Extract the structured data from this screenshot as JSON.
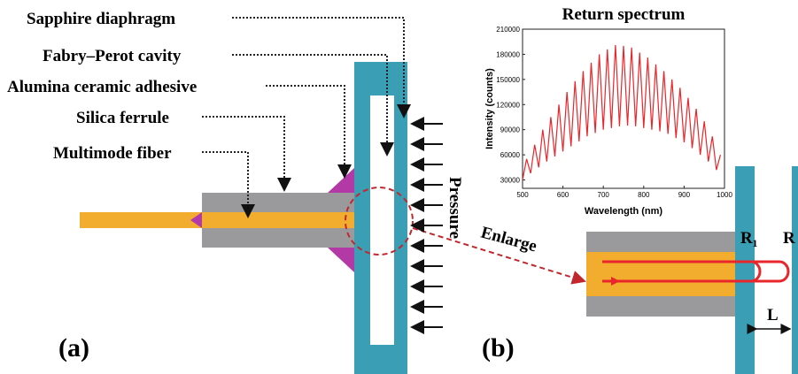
{
  "labels": {
    "sapphire": "Sapphire diaphragm",
    "cavity": "Fabry–Perot cavity",
    "adhesive": "Alumina ceramic adhesive",
    "ferrule": "Silica ferrule",
    "fiber": "Multimode fiber",
    "pressure": "Pressure",
    "enlarge": "Enlarge",
    "r1": "R₁",
    "r2": "R",
    "l": "L",
    "a": "(a)",
    "b": "(b)"
  },
  "chart_data": {
    "type": "line",
    "title": "Return spectrum",
    "x_label": "Wavelength (nm)",
    "y_label": "Intensity (counts)",
    "x": [
      500,
      510,
      520,
      530,
      540,
      550,
      560,
      570,
      580,
      590,
      600,
      610,
      620,
      630,
      640,
      650,
      660,
      670,
      680,
      690,
      700,
      710,
      720,
      730,
      740,
      750,
      760,
      770,
      780,
      790,
      800,
      810,
      820,
      830,
      840,
      850,
      860,
      870,
      880,
      890,
      900,
      910,
      920,
      930,
      940,
      950,
      960,
      970,
      980,
      990
    ],
    "series": [
      {
        "color": "#e8262b",
        "values": [
          30000,
          55000,
          38000,
          72000,
          45000,
          90000,
          52000,
          105000,
          58000,
          120000,
          64000,
          135000,
          70000,
          148000,
          76000,
          160000,
          82000,
          170000,
          86000,
          180000,
          90000,
          186000,
          92000,
          191000,
          94000,
          190000,
          95000,
          188000,
          94000,
          182000,
          92000,
          176000,
          90000,
          168000,
          88000,
          160000,
          85000,
          150000,
          80000,
          140000,
          75000,
          128000,
          68000,
          115000,
          60000,
          100000,
          52000,
          82000,
          42000,
          60000
        ]
      }
    ],
    "xlim": [
      500,
      1000
    ],
    "xticks": [
      500,
      600,
      700,
      800,
      900,
      1000
    ],
    "ylim": [
      20000,
      210000
    ],
    "yticks": [
      30000,
      60000,
      90000,
      120000,
      150000,
      180000,
      210000
    ]
  }
}
